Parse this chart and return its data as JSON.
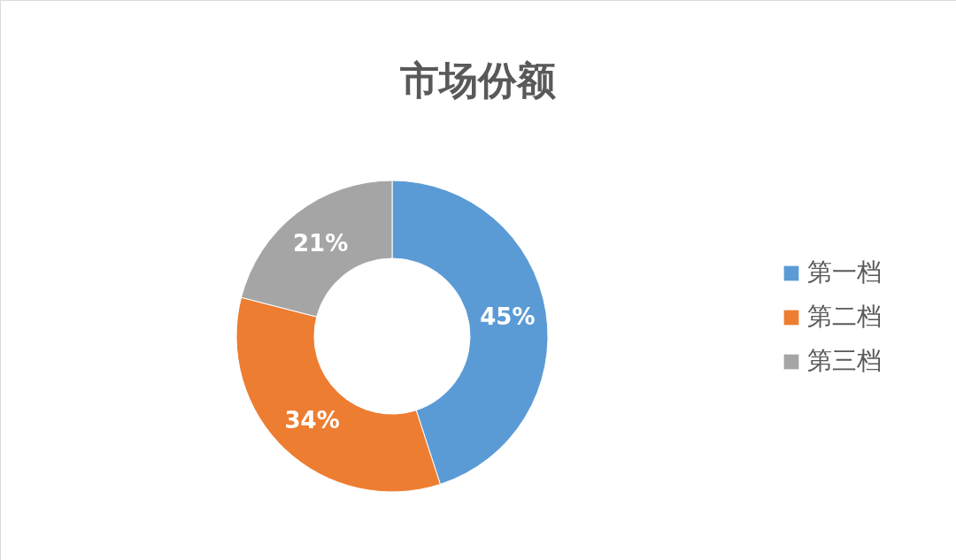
{
  "chart_data": {
    "type": "donut",
    "title": "市场份额",
    "categories": [
      "第一档",
      "第二档",
      "第三档"
    ],
    "values": [
      45,
      34,
      21
    ],
    "value_labels": [
      "45%",
      "34%",
      "21%"
    ],
    "colors": [
      "#5b9bd5",
      "#ed7d31",
      "#a5a5a5"
    ],
    "legend": "right"
  }
}
